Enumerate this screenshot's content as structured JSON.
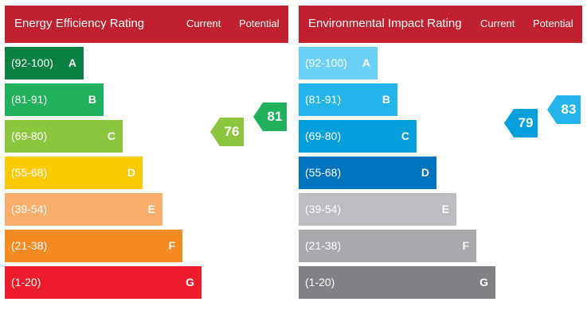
{
  "chart_data": [
    {
      "type": "bar",
      "title": "Energy Efficiency Rating",
      "columns": [
        "Current",
        "Potential"
      ],
      "bands": [
        {
          "range": "(92-100)",
          "letter": "A",
          "color": "#0a8043"
        },
        {
          "range": "(81-91)",
          "letter": "B",
          "color": "#21b15b"
        },
        {
          "range": "(69-80)",
          "letter": "C",
          "color": "#8cc63f"
        },
        {
          "range": "(55-68)",
          "letter": "D",
          "color": "#fcca05"
        },
        {
          "range": "(39-54)",
          "letter": "E",
          "color": "#f9ad6a"
        },
        {
          "range": "(21-38)",
          "letter": "F",
          "color": "#f38a24"
        },
        {
          "range": "(1-20)",
          "letter": "G",
          "color": "#ed1c2d"
        }
      ],
      "current": {
        "value": 76,
        "color": "#8cc63f"
      },
      "potential": {
        "value": 81,
        "color": "#21b15b"
      }
    },
    {
      "type": "bar",
      "title": "Environmental Impact Rating",
      "columns": [
        "Current",
        "Potential"
      ],
      "bands": [
        {
          "range": "(92-100)",
          "letter": "A",
          "color": "#6bcff6"
        },
        {
          "range": "(81-91)",
          "letter": "B",
          "color": "#22b4ea"
        },
        {
          "range": "(69-80)",
          "letter": "C",
          "color": "#05a0dc"
        },
        {
          "range": "(55-68)",
          "letter": "D",
          "color": "#0073bd"
        },
        {
          "range": "(39-54)",
          "letter": "E",
          "color": "#bcbdc0"
        },
        {
          "range": "(21-38)",
          "letter": "F",
          "color": "#a7a9ac"
        },
        {
          "range": "(1-20)",
          "letter": "G",
          "color": "#808184"
        }
      ],
      "current": {
        "value": 79,
        "color": "#05a0dc"
      },
      "potential": {
        "value": 83,
        "color": "#22b4ea"
      }
    }
  ],
  "header_color": "#c1202e"
}
